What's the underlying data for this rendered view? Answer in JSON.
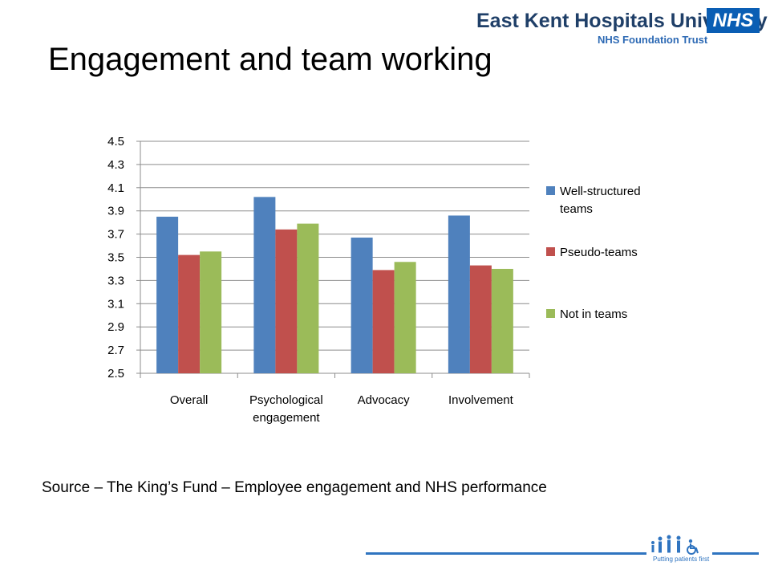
{
  "header": {
    "org_name": "East Kent Hospitals University",
    "org_sub": "NHS Foundation Trust",
    "nhs_logo": "NHS"
  },
  "slide": {
    "title": "Engagement and team working",
    "source": "Source – The King’s Fund – Employee engagement and NHS performance"
  },
  "footer": {
    "tagline": "Putting patients first",
    "line_color": "#2f74c0",
    "logo_icon": "people-and-wheelchair-icon"
  },
  "chart_data": {
    "type": "bar",
    "title": "",
    "xlabel": "",
    "ylabel": "",
    "categories": [
      [
        "Overall"
      ],
      [
        "Psychological",
        "engagement"
      ],
      [
        "Advocacy"
      ],
      [
        "Involvement"
      ]
    ],
    "series": [
      {
        "name": [
          "Well-structured",
          "teams"
        ],
        "color": "#4f81bd",
        "values": [
          3.85,
          4.02,
          3.67,
          3.86
        ]
      },
      {
        "name": [
          "Pseudo-teams"
        ],
        "color": "#c0504d",
        "values": [
          3.52,
          3.74,
          3.39,
          3.43
        ]
      },
      {
        "name": [
          "Not in teams"
        ],
        "color": "#9bbb59",
        "values": [
          3.55,
          3.79,
          3.46,
          3.4
        ]
      }
    ],
    "ylim": [
      2.5,
      4.5
    ],
    "yticks": [
      "2.5",
      "2.7",
      "2.9",
      "3.1",
      "3.3",
      "3.5",
      "3.7",
      "3.9",
      "4.1",
      "4.3",
      "4.5"
    ],
    "grid": true,
    "legend": "right"
  }
}
